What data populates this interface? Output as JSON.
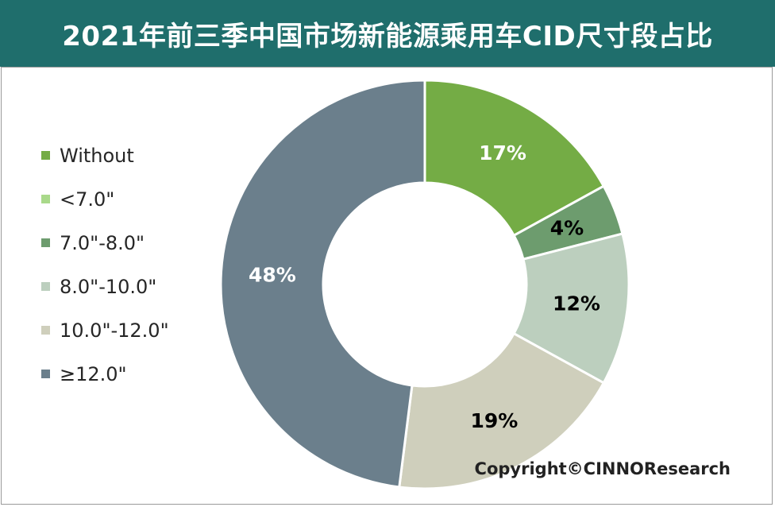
{
  "title": "2021年前三季中国市场新能源乘用车CID尺寸段占比",
  "copyright": "Copyright©CINNOResearch",
  "chart_data": {
    "type": "pie",
    "variant": "donut",
    "legend_position": "left",
    "categories": [
      "Without",
      "<7.0\"",
      "7.0\"-8.0\"",
      "8.0\"-10.0\"",
      "10.0\"-12.0\"",
      "≥12.0\""
    ],
    "values": [
      17,
      0,
      4,
      12,
      19,
      48
    ],
    "labels": [
      "17%",
      "",
      "4%",
      "12%",
      "19%",
      "48%"
    ],
    "colors": [
      "#74ac45",
      "#a9d98a",
      "#6d9c6e",
      "#bccfbe",
      "#cfcfbc",
      "#6b7f8c"
    ],
    "label_colors": [
      "#ffffff",
      "#000000",
      "#000000",
      "#000000",
      "#000000",
      "#ffffff"
    ]
  }
}
